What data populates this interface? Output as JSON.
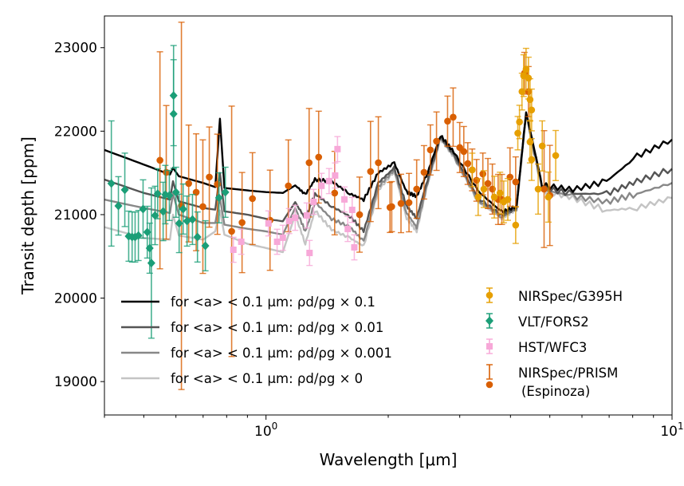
{
  "chart_data": {
    "type": "line",
    "xlabel": "Wavelength [μm]",
    "ylabel": "Transit depth [ppm]",
    "xscale": "log",
    "xlim": [
      0.4,
      10
    ],
    "ylim": [
      18600,
      23380
    ],
    "grid": false,
    "x_ticks": [
      {
        "value": 1,
        "base": "10",
        "exp": "0"
      },
      {
        "value": 10,
        "base": "10",
        "exp": "1"
      }
    ],
    "y_ticks": [
      {
        "value": 19000,
        "label": "19000"
      },
      {
        "value": 20000,
        "label": "20000"
      },
      {
        "value": 21000,
        "label": "21000"
      },
      {
        "value": 22000,
        "label": "22000"
      },
      {
        "value": 23000,
        "label": "23000"
      }
    ],
    "legend_models_placement": "lower-left",
    "legend_data_placement": "lower-right",
    "model_wavelength": [
      0.4,
      0.5,
      0.58,
      0.59,
      0.61,
      0.7,
      0.75,
      0.77,
      0.79,
      0.9,
      1.0,
      1.1,
      1.18,
      1.25,
      1.32,
      1.45,
      1.61,
      1.74,
      1.89,
      2.07,
      2.22,
      2.35,
      2.5,
      2.69,
      2.9,
      3.33,
      3.81,
      4.14,
      4.37,
      4.79,
      5.7,
      6.9,
      8.2,
      10
    ],
    "models": [
      {
        "name": "for <a> < 0.1 μm: ρd/ρg × 0.1",
        "color": "#000000",
        "values": [
          21775,
          21600,
          21480,
          21560,
          21460,
          21380,
          21330,
          22150,
          21320,
          21290,
          21270,
          21260,
          21350,
          21240,
          21420,
          21400,
          21250,
          21180,
          21500,
          21620,
          21270,
          21220,
          21500,
          21950,
          21750,
          21280,
          21030,
          21100,
          22230,
          21350,
          21300,
          21400,
          21700,
          21900
        ]
      },
      {
        "name": "for <a> < 0.1 μm: ρd/ρg × 0.01",
        "color": "#555555",
        "values": [
          21420,
          21260,
          21180,
          21400,
          21160,
          21080,
          21060,
          21500,
          21040,
          21000,
          20950,
          20920,
          21150,
          20950,
          21250,
          21100,
          20980,
          20800,
          21380,
          21560,
          21100,
          20960,
          21420,
          21930,
          21720,
          21200,
          20990,
          21080,
          22220,
          21320,
          21250,
          21250,
          21400,
          21550
        ]
      },
      {
        "name": "for <a> < 0.1 μm: ρd/ρg × 0.001",
        "color": "#888888",
        "values": [
          21180,
          21080,
          21020,
          21250,
          21000,
          20900,
          20900,
          21200,
          20880,
          20830,
          20800,
          20760,
          21080,
          20800,
          21150,
          20950,
          20850,
          20680,
          21330,
          21540,
          21020,
          20850,
          21380,
          21920,
          21700,
          21170,
          20970,
          21070,
          22210,
          21300,
          21220,
          21150,
          21250,
          21380
        ]
      },
      {
        "name": "for <a> < 0.1 μm: ρd/ρg × 0",
        "color": "#c4c4c4",
        "values": [
          20850,
          20720,
          20700,
          21000,
          20750,
          20700,
          20800,
          21050,
          20760,
          20650,
          20600,
          20550,
          21000,
          20650,
          21050,
          20820,
          20720,
          20620,
          21290,
          21520,
          20960,
          20800,
          21360,
          21910,
          21690,
          21150,
          20960,
          21060,
          22200,
          21290,
          21200,
          21050,
          21080,
          21200
        ]
      }
    ],
    "datasets": [
      {
        "name": "NIRSpec/G395H",
        "color": "#e69f00",
        "marker": "circle",
        "points": [
          [
            3.22,
            21536,
            200
          ],
          [
            3.33,
            21210,
            220
          ],
          [
            3.44,
            21306,
            220
          ],
          [
            3.65,
            21210,
            250
          ],
          [
            3.77,
            21258,
            250
          ],
          [
            3.85,
            21153,
            250
          ],
          [
            3.94,
            21182,
            250
          ],
          [
            4.12,
            20875,
            220
          ],
          [
            4.17,
            21976,
            200
          ],
          [
            4.21,
            22110,
            200
          ],
          [
            4.27,
            22474,
            220
          ],
          [
            4.31,
            22665,
            250
          ],
          [
            4.37,
            22742,
            250
          ],
          [
            4.43,
            22636,
            250
          ],
          [
            4.47,
            22378,
            250
          ],
          [
            4.47,
            21870,
            250
          ],
          [
            4.51,
            22254,
            250
          ],
          [
            4.51,
            21660,
            250
          ],
          [
            4.68,
            21306,
            300
          ],
          [
            4.79,
            21823,
            300
          ],
          [
            4.96,
            21210,
            300
          ],
          [
            5.17,
            21708,
            300
          ]
        ]
      },
      {
        "name": "VLT/FORS2",
        "color": "#1b9e77",
        "marker": "diamond",
        "points": [
          [
            0.416,
            21373,
            750
          ],
          [
            0.433,
            21105,
            350
          ],
          [
            0.449,
            21297,
            440
          ],
          [
            0.459,
            20742,
            300
          ],
          [
            0.468,
            20732,
            300
          ],
          [
            0.476,
            20732,
            300
          ],
          [
            0.485,
            20750,
            300
          ],
          [
            0.498,
            21067,
            350
          ],
          [
            0.51,
            20790,
            310
          ],
          [
            0.517,
            20598,
            300
          ],
          [
            0.522,
            20420,
            900
          ],
          [
            0.533,
            20990,
            350
          ],
          [
            0.541,
            21250,
            300
          ],
          [
            0.558,
            21038,
            350
          ],
          [
            0.565,
            21240,
            350
          ],
          [
            0.578,
            21230,
            300
          ],
          [
            0.592,
            22426,
            600
          ],
          [
            0.592,
            22206,
            650
          ],
          [
            0.6,
            21268,
            300
          ],
          [
            0.611,
            20895,
            350
          ],
          [
            0.625,
            21067,
            300
          ],
          [
            0.639,
            20923,
            300
          ],
          [
            0.659,
            20942,
            300
          ],
          [
            0.678,
            20732,
            300
          ],
          [
            0.709,
            20627,
            300
          ],
          [
            0.766,
            21201,
            300
          ],
          [
            0.794,
            21268,
            300
          ]
        ]
      },
      {
        "name": "HST/WFC3",
        "color": "#f7a8d8",
        "marker": "square",
        "points": [
          [
            0.831,
            20579,
            150
          ],
          [
            0.869,
            20675,
            150
          ],
          [
            1.014,
            20895,
            150
          ],
          [
            1.065,
            20675,
            150
          ],
          [
            1.1,
            20723,
            150
          ],
          [
            1.14,
            20923,
            150
          ],
          [
            1.18,
            20962,
            150
          ],
          [
            1.26,
            20990,
            150
          ],
          [
            1.28,
            20541,
            150
          ],
          [
            1.31,
            21153,
            150
          ],
          [
            1.37,
            21345,
            150
          ],
          [
            1.43,
            21402,
            150
          ],
          [
            1.48,
            21469,
            150
          ],
          [
            1.5,
            21785,
            150
          ],
          [
            1.56,
            21182,
            150
          ],
          [
            1.59,
            20828,
            150
          ],
          [
            1.63,
            21057,
            150
          ],
          [
            1.65,
            20608,
            150
          ]
        ]
      },
      {
        "name": "NIRSpec/PRISM",
        "name2": "(Espinoza)",
        "color": "#d95f02",
        "marker": "circle",
        "points": [
          [
            0.548,
            21651,
            1300
          ],
          [
            0.568,
            21507,
            800
          ],
          [
            0.619,
            21105,
            2200
          ],
          [
            0.645,
            21373,
            700
          ],
          [
            0.673,
            21268,
            700
          ],
          [
            0.699,
            21096,
            800
          ],
          [
            0.725,
            21450,
            600
          ],
          [
            0.759,
            21364,
            600
          ],
          [
            0.823,
            20800,
            1500
          ],
          [
            0.873,
            20905,
            600
          ],
          [
            0.926,
            21192,
            550
          ],
          [
            1.023,
            20933,
            600
          ],
          [
            1.135,
            21345,
            550
          ],
          [
            1.277,
            21622,
            650
          ],
          [
            1.348,
            21689,
            550
          ],
          [
            1.476,
            21258,
            500
          ],
          [
            1.7,
            21000,
            450
          ],
          [
            1.809,
            21517,
            600
          ],
          [
            1.891,
            21622,
            550
          ],
          [
            2.02,
            21086,
            300
          ],
          [
            2.04,
            21096,
            300
          ],
          [
            2.15,
            21134,
            350
          ],
          [
            2.25,
            21144,
            350
          ],
          [
            2.35,
            21306,
            350
          ],
          [
            2.45,
            21507,
            320
          ],
          [
            2.54,
            21775,
            300
          ],
          [
            2.63,
            21880,
            350
          ],
          [
            2.8,
            22120,
            300
          ],
          [
            2.89,
            22168,
            350
          ],
          [
            3.0,
            21804,
            300
          ],
          [
            3.07,
            21756,
            300
          ],
          [
            3.14,
            21612,
            250
          ],
          [
            3.22,
            21536,
            250
          ],
          [
            3.3,
            21411,
            250
          ],
          [
            3.42,
            21488,
            250
          ],
          [
            3.52,
            21373,
            300
          ],
          [
            3.61,
            21306,
            300
          ],
          [
            3.73,
            21182,
            300
          ],
          [
            3.81,
            21182,
            300
          ],
          [
            3.99,
            21450,
            350
          ],
          [
            4.12,
            21392,
            300
          ],
          [
            4.33,
            22694,
            250
          ],
          [
            4.43,
            22474,
            300
          ],
          [
            4.84,
            21306,
            700
          ],
          [
            5.0,
            21230,
            600
          ]
        ]
      }
    ]
  }
}
